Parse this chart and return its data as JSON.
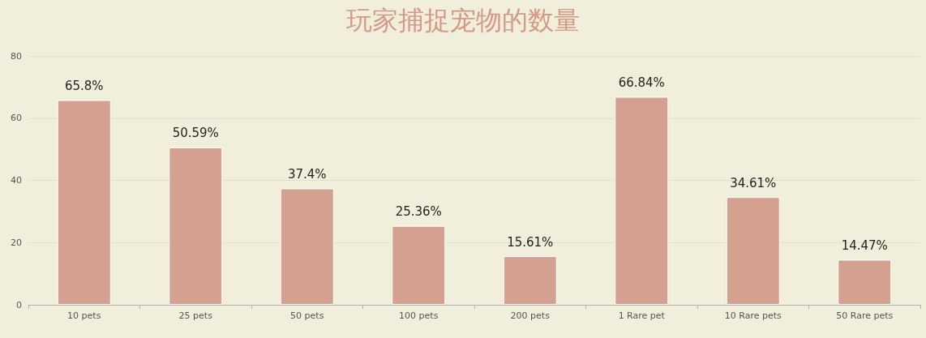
{
  "chart_data": {
    "type": "bar",
    "title": "玩家捕捉宠物的数量",
    "categories": [
      "10 pets",
      "25 pets",
      "50 pets",
      "100 pets",
      "200 pets",
      "1 Rare pet",
      "10 Rare pets",
      "50 Rare pets"
    ],
    "values": [
      65.8,
      50.59,
      37.4,
      25.36,
      15.61,
      66.84,
      34.61,
      14.47
    ],
    "value_labels": [
      "65.8%",
      "50.59%",
      "37.4%",
      "25.36%",
      "15.61%",
      "66.84%",
      "34.61%",
      "14.47%"
    ],
    "color": "#d4a08f",
    "ylim": [
      0,
      80
    ],
    "yticks": [
      0,
      20,
      40,
      60,
      80
    ],
    "grid": "y"
  }
}
